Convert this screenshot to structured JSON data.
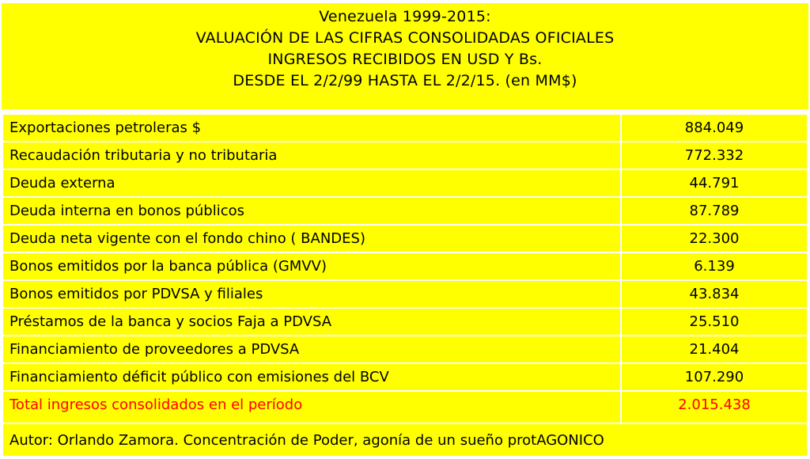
{
  "title": {
    "lines": [
      "Venezuela 1999-2015:",
      "VALUACIÓN DE LAS CIFRAS CONSOLIDADAS OFICIALES",
      "INGRESOS RECIBIDOS EN USD Y Bs.",
      "DESDE EL 2/2/99 HASTA EL 2/2/15. (en MM$)"
    ]
  },
  "rows": [
    {
      "label": "Exportaciones petroleras  $",
      "value": "884.049"
    },
    {
      "label": "Recaudación tributaria y no tributaria",
      "value": "772.332"
    },
    {
      "label": "Deuda externa",
      "value": "44.791"
    },
    {
      "label": "Deuda interna en bonos públicos",
      "value": "87.789"
    },
    {
      "label": "Deuda neta vigente con el fondo chino ( BANDES)",
      "value": "22.300"
    },
    {
      "label": "Bonos emitidos por la banca pública (GMVV)",
      "value": "6.139"
    },
    {
      "label": "Bonos emitidos por PDVSA y filiales",
      "value": "43.834"
    },
    {
      "label": "Préstamos de la banca y socios Faja a PDVSA",
      "value": "25.510"
    },
    {
      "label": "Financiamiento de proveedores a PDVSA",
      "value": "21.404"
    },
    {
      "label": "Financiamiento déficit público con emisiones del BCV",
      "value": "107.290"
    }
  ],
  "total": {
    "label": "Total ingresos consolidados en el período",
    "value": "2.015.438"
  },
  "footer": "Autor: Orlando Zamora. Concentración de Poder, agonía de un sueño protAGONICO",
  "colors": {
    "background": "#ffff00",
    "total_text": "#ff0000",
    "border": "#ffffff"
  }
}
